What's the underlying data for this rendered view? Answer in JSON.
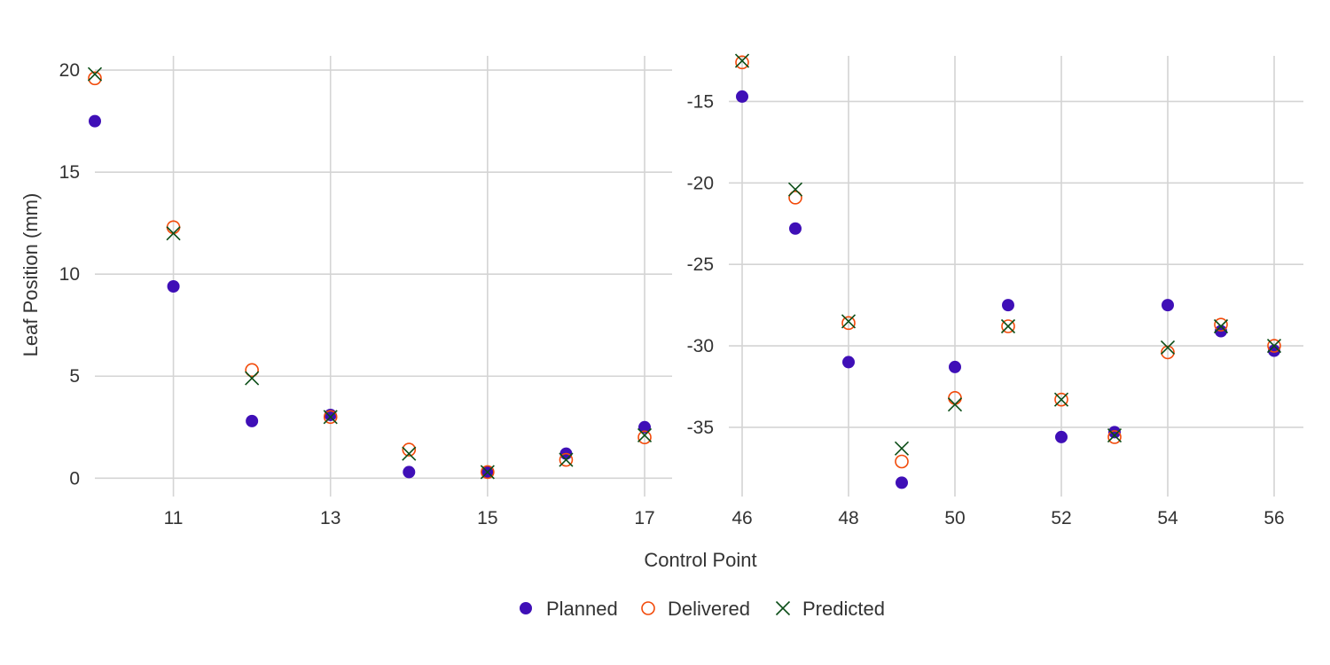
{
  "chart_data": {
    "type": "scatter",
    "xlabel": "Control Point",
    "ylabel": "Leaf Position (mm)",
    "legend_position": "bottom",
    "colors": {
      "planned": "#3f0fb7",
      "delivered": "#f24a0a",
      "predicted": "#0c4e18",
      "grid": "#d4d4d4",
      "text": "#333333"
    },
    "legend": [
      {
        "key": "planned",
        "label": "Planned",
        "marker": "filled-circle"
      },
      {
        "key": "delivered",
        "label": "Delivered",
        "marker": "open-circle"
      },
      {
        "key": "predicted",
        "label": "Predicted",
        "marker": "x-cross"
      }
    ],
    "panels": [
      {
        "xlim": [
          10,
          17.35
        ],
        "ylim": [
          -0.9,
          20.7
        ],
        "x_ticks": [
          11,
          13,
          15,
          17
        ],
        "y_ticks": [
          0,
          5,
          10,
          15,
          20
        ],
        "series": [
          {
            "key": "planned",
            "x": [
              10,
              11,
              12,
              13,
              14,
              15,
              16,
              17
            ],
            "y": [
              17.5,
              9.4,
              2.8,
              3.1,
              0.3,
              0.3,
              1.2,
              2.5
            ]
          },
          {
            "key": "delivered",
            "x": [
              10,
              11,
              12,
              13,
              14,
              15,
              16,
              17
            ],
            "y": [
              19.6,
              12.3,
              5.3,
              3.0,
              1.4,
              0.3,
              0.9,
              2.0
            ]
          },
          {
            "key": "predicted",
            "x": [
              10,
              11,
              12,
              13,
              14,
              15,
              16,
              17
            ],
            "y": [
              19.8,
              12.0,
              4.9,
              3.0,
              1.2,
              0.3,
              0.9,
              2.1
            ]
          }
        ]
      },
      {
        "xlim": [
          45.75,
          56.55
        ],
        "ylim": [
          -39.25,
          -12.2
        ],
        "x_ticks": [
          46,
          48,
          50,
          52,
          54,
          56
        ],
        "y_ticks": [
          -35,
          -30,
          -25,
          -20,
          -15
        ],
        "series": [
          {
            "key": "planned",
            "x": [
              46,
              47,
              48,
              49,
              50,
              51,
              52,
              53,
              54,
              55,
              56
            ],
            "y": [
              -14.7,
              -22.8,
              -31.0,
              -38.4,
              -31.3,
              -27.5,
              -35.6,
              -35.3,
              -27.5,
              -29.1,
              -30.3
            ]
          },
          {
            "key": "delivered",
            "x": [
              46,
              47,
              48,
              49,
              50,
              51,
              52,
              53,
              54,
              55,
              56
            ],
            "y": [
              -12.6,
              -20.9,
              -28.6,
              -37.1,
              -33.2,
              -28.8,
              -33.3,
              -35.6,
              -30.4,
              -28.7,
              -30.0
            ]
          },
          {
            "key": "predicted",
            "x": [
              46,
              47,
              48,
              49,
              50,
              51,
              52,
              53,
              54,
              55,
              56
            ],
            "y": [
              -12.5,
              -20.4,
              -28.5,
              -36.3,
              -33.6,
              -28.8,
              -33.3,
              -35.5,
              -30.1,
              -28.8,
              -30.0
            ]
          }
        ]
      }
    ]
  }
}
